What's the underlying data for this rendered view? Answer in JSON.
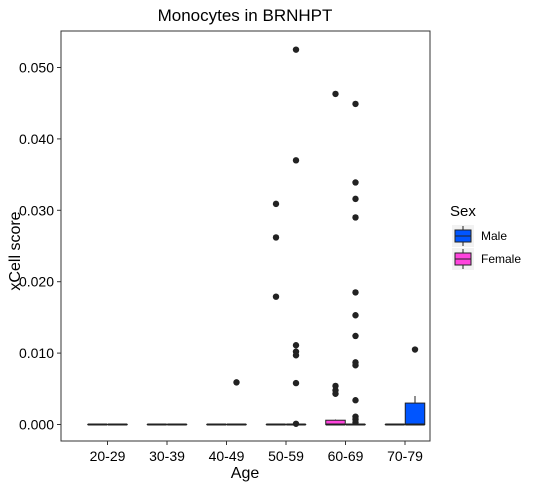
{
  "chart_data": {
    "type": "box",
    "title": "Monocytes in BRNHPT",
    "xlabel": "Age",
    "ylabel": "xCell score",
    "categories": [
      "20-29",
      "30-39",
      "40-49",
      "50-59",
      "60-69",
      "70-79"
    ],
    "ylim": [
      -0.0025,
      0.0555
    ],
    "yticks": [
      0.0,
      0.01,
      0.02,
      0.03,
      0.04,
      0.05
    ],
    "ytick_labels": [
      "0.000",
      "0.010",
      "0.020",
      "0.030",
      "0.040",
      "0.050"
    ],
    "grid": false,
    "legend": {
      "title": "Sex",
      "position": "right"
    },
    "series": [
      {
        "name": "Male",
        "color": "#0055ff",
        "boxes": [
          {
            "category": "20-29",
            "min": 0,
            "q1": 0,
            "median": 0,
            "q3": 0,
            "max": 0,
            "outliers": []
          },
          {
            "category": "30-39",
            "min": 0,
            "q1": 0,
            "median": 0,
            "q3": 0,
            "max": 0,
            "outliers": []
          },
          {
            "category": "40-49",
            "min": 0,
            "q1": 0,
            "median": 0,
            "q3": 0,
            "max": 0,
            "outliers": []
          },
          {
            "category": "50-59",
            "min": 0,
            "q1": 0,
            "median": 0,
            "q3": 0,
            "max": 0,
            "outliers": []
          },
          {
            "category": "60-69",
            "min": 0,
            "q1": 0,
            "median": 0,
            "q3": 0,
            "max": 0,
            "outliers": []
          },
          {
            "category": "70-79",
            "min": 0,
            "q1": 0,
            "median": 0,
            "q3": 0.003,
            "max": 0.004,
            "outliers": [
              0.0105
            ]
          }
        ]
      },
      {
        "name": "Female",
        "color": "#ff44dd",
        "boxes": [
          {
            "category": "20-29",
            "min": 0,
            "q1": 0,
            "median": 0,
            "q3": 0,
            "max": 0,
            "outliers": []
          },
          {
            "category": "30-39",
            "min": 0,
            "q1": 0,
            "median": 0,
            "q3": 0,
            "max": 0,
            "outliers": []
          },
          {
            "category": "40-49",
            "min": 0,
            "q1": 0,
            "median": 0,
            "q3": 0,
            "max": 0,
            "outliers": []
          },
          {
            "category": "50-59",
            "min": 0,
            "q1": 0,
            "median": 0,
            "q3": 0,
            "max": 0,
            "outliers": []
          },
          {
            "category": "60-69",
            "min": 0,
            "q1": 0,
            "median": 0,
            "q3": 0.0006,
            "max": 0.0007,
            "outliers": []
          },
          {
            "category": "70-79",
            "min": 0,
            "q1": 0,
            "median": 0,
            "q3": 0,
            "max": 0,
            "outliers": []
          }
        ]
      }
    ],
    "points_left": {
      "40-49": [],
      "50-59": [
        0.0309,
        0.0262,
        0.0179
      ],
      "60-69": [
        0.0463,
        0.0054,
        0.0048,
        0.0043
      ],
      "70-79": []
    },
    "points_right": {
      "40-49": [
        0.0059
      ],
      "50-59": [
        0.0525,
        0.037,
        0.0111,
        0.0102,
        0.0097,
        0.0058,
        0.0001
      ],
      "60-69": [
        0.0449,
        0.0339,
        0.0316,
        0.029,
        0.0185,
        0.0153,
        0.0124,
        0.0087,
        0.0083,
        0.0034,
        0.0011,
        0.0007,
        0.0003
      ],
      "70-79": [
        0.0105
      ]
    }
  }
}
